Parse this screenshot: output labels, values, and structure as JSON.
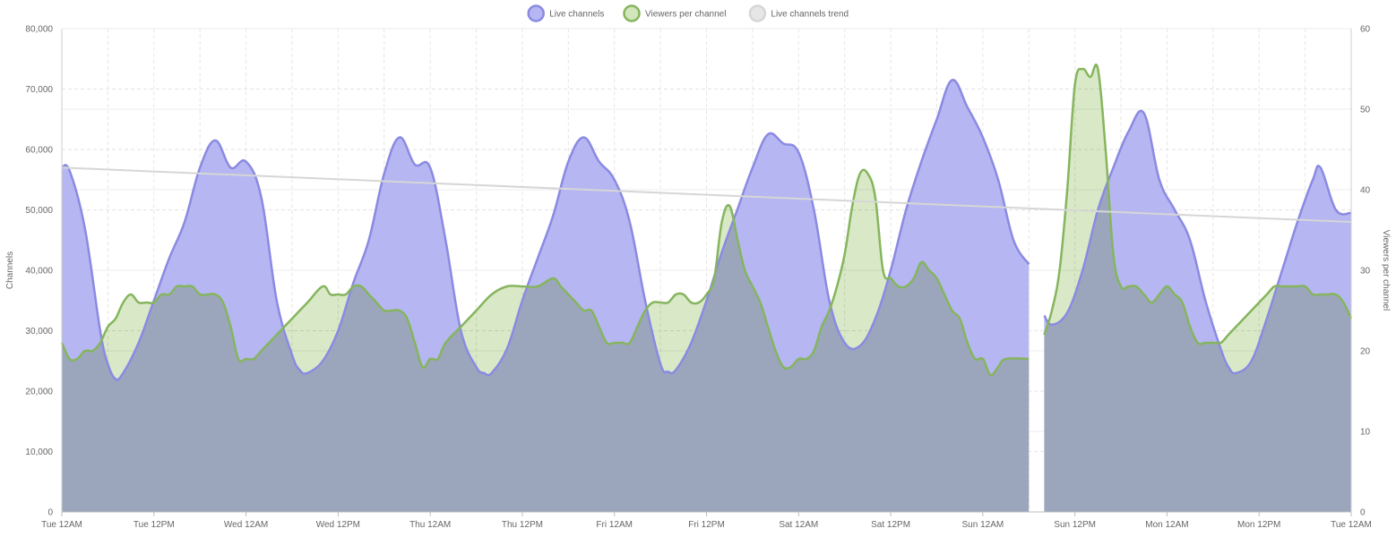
{
  "chart_data": {
    "type": "area",
    "legend": {
      "placement": "top-center",
      "items": [
        {
          "key": "live",
          "label": "Live channels",
          "fill": "#b6b6f2",
          "stroke": "#8a8ae2"
        },
        {
          "key": "vpc",
          "label": "Viewers per channel",
          "fill": "#d2e5bd",
          "stroke": "#85b55d"
        },
        {
          "key": "trend",
          "label": "Live channels trend",
          "fill": "#e6e6e6",
          "stroke": "#d6d6d6"
        }
      ]
    },
    "x_axis": {
      "range_hours": [
        0,
        168
      ],
      "tick_labels": [
        "Tue 12AM",
        "Tue 12PM",
        "Wed 12AM",
        "Wed 12PM",
        "Thu 12AM",
        "Thu 12PM",
        "Fri 12AM",
        "Fri 12PM",
        "Sat 12AM",
        "Sat 12PM",
        "Sun 12AM",
        "Sun 12PM",
        "Mon 12AM",
        "Mon 12PM",
        "Tue 12AM"
      ]
    },
    "y_left": {
      "title": "Channels",
      "range": [
        0,
        80000
      ],
      "tick_labels": [
        "0",
        "10,000",
        "20,000",
        "30,000",
        "40,000",
        "50,000",
        "60,000",
        "70,000",
        "80,000"
      ]
    },
    "y_right": {
      "title": "Viewers per channel",
      "range": [
        0,
        60
      ],
      "tick_labels": [
        "0",
        "10",
        "20",
        "30",
        "40",
        "50",
        "60"
      ]
    },
    "grid": true,
    "series": [
      {
        "key": "live",
        "name": "Live channels",
        "axis": "left",
        "points": [
          [
            0,
            57000
          ],
          [
            1,
            56500
          ],
          [
            3,
            47000
          ],
          [
            5,
            30000
          ],
          [
            6,
            24500
          ],
          [
            7,
            22000
          ],
          [
            8,
            23000
          ],
          [
            10,
            28000
          ],
          [
            12,
            35000
          ],
          [
            14,
            42000
          ],
          [
            16,
            48000
          ],
          [
            18,
            57000
          ],
          [
            20,
            61500
          ],
          [
            22,
            57000
          ],
          [
            24,
            58000
          ],
          [
            26,
            52000
          ],
          [
            28,
            35000
          ],
          [
            30,
            26000
          ],
          [
            31,
            23500
          ],
          [
            32,
            23000
          ],
          [
            34,
            25000
          ],
          [
            36,
            30000
          ],
          [
            38,
            38000
          ],
          [
            40,
            45000
          ],
          [
            42,
            56000
          ],
          [
            44,
            62000
          ],
          [
            46,
            57500
          ],
          [
            48,
            57000
          ],
          [
            50,
            45000
          ],
          [
            52,
            30000
          ],
          [
            54,
            24000
          ],
          [
            55,
            23000
          ],
          [
            56,
            23000
          ],
          [
            58,
            27000
          ],
          [
            60,
            35000
          ],
          [
            62,
            42000
          ],
          [
            64,
            49000
          ],
          [
            66,
            58000
          ],
          [
            68,
            62000
          ],
          [
            70,
            58000
          ],
          [
            72,
            55000
          ],
          [
            74,
            48000
          ],
          [
            76,
            35000
          ],
          [
            78,
            24500
          ],
          [
            79,
            23200
          ],
          [
            80,
            23500
          ],
          [
            82,
            28000
          ],
          [
            84,
            35000
          ],
          [
            86,
            43000
          ],
          [
            88,
            50000
          ],
          [
            90,
            57000
          ],
          [
            92,
            62500
          ],
          [
            94,
            61000
          ],
          [
            96,
            59500
          ],
          [
            98,
            50000
          ],
          [
            100,
            35000
          ],
          [
            102,
            28000
          ],
          [
            104,
            27500
          ],
          [
            106,
            32000
          ],
          [
            108,
            40000
          ],
          [
            110,
            50000
          ],
          [
            112,
            58000
          ],
          [
            114,
            65000
          ],
          [
            116,
            71500
          ],
          [
            118,
            67000
          ],
          [
            120,
            62000
          ],
          [
            122,
            55000
          ],
          [
            124,
            45000
          ],
          [
            126,
            41000
          ]
        ]
      },
      {
        "key": "live",
        "name": "Live channels",
        "axis": "left",
        "points": [
          [
            128,
            32500
          ],
          [
            129,
            31000
          ],
          [
            131,
            33000
          ],
          [
            133,
            40000
          ],
          [
            135,
            50000
          ],
          [
            137,
            57000
          ],
          [
            139,
            63000
          ],
          [
            141,
            66000
          ],
          [
            143,
            55000
          ],
          [
            145,
            50000
          ],
          [
            147,
            45000
          ],
          [
            149,
            35000
          ],
          [
            151,
            27000
          ],
          [
            152,
            24000
          ],
          [
            153,
            23000
          ],
          [
            155,
            25000
          ],
          [
            157,
            32000
          ],
          [
            159,
            40000
          ],
          [
            161,
            48000
          ],
          [
            163,
            55000
          ],
          [
            164,
            57000
          ],
          [
            166,
            50000
          ],
          [
            168,
            49500
          ]
        ]
      },
      {
        "key": "vpc",
        "name": "Viewers per channel",
        "axis": "right",
        "points": [
          [
            0,
            21
          ],
          [
            1,
            19
          ],
          [
            2,
            19
          ],
          [
            3,
            20
          ],
          [
            4,
            20
          ],
          [
            5,
            21
          ],
          [
            6,
            23
          ],
          [
            7,
            24
          ],
          [
            8,
            26
          ],
          [
            9,
            27
          ],
          [
            10,
            26
          ],
          [
            11,
            26
          ],
          [
            12,
            26
          ],
          [
            13,
            27
          ],
          [
            14,
            27
          ],
          [
            15,
            28
          ],
          [
            16,
            28
          ],
          [
            17,
            28
          ],
          [
            18,
            27
          ],
          [
            19,
            27
          ],
          [
            20,
            27
          ],
          [
            21,
            26
          ],
          [
            22,
            23
          ],
          [
            23,
            19
          ],
          [
            24,
            19
          ],
          [
            25,
            19
          ],
          [
            26,
            20
          ],
          [
            28,
            22
          ],
          [
            30,
            24
          ],
          [
            32,
            26
          ],
          [
            34,
            28
          ],
          [
            35,
            27
          ],
          [
            36,
            27
          ],
          [
            37,
            27
          ],
          [
            38,
            28
          ],
          [
            39,
            28
          ],
          [
            40,
            27
          ],
          [
            41,
            26
          ],
          [
            42,
            25
          ],
          [
            43,
            25
          ],
          [
            44,
            25
          ],
          [
            45,
            24
          ],
          [
            46,
            21
          ],
          [
            47,
            18
          ],
          [
            48,
            19
          ],
          [
            49,
            19
          ],
          [
            50,
            21
          ],
          [
            52,
            23
          ],
          [
            54,
            25
          ],
          [
            56,
            27
          ],
          [
            58,
            28
          ],
          [
            60,
            28
          ],
          [
            62,
            28
          ],
          [
            64,
            29
          ],
          [
            65,
            28
          ],
          [
            66,
            27
          ],
          [
            67,
            26
          ],
          [
            68,
            25
          ],
          [
            69,
            25
          ],
          [
            70,
            23
          ],
          [
            71,
            21
          ],
          [
            72,
            21
          ],
          [
            73,
            21
          ],
          [
            74,
            21
          ],
          [
            75,
            23
          ],
          [
            76,
            25
          ],
          [
            77,
            26
          ],
          [
            78,
            26
          ],
          [
            79,
            26
          ],
          [
            80,
            27
          ],
          [
            81,
            27
          ],
          [
            82,
            26
          ],
          [
            83,
            26
          ],
          [
            84,
            27
          ],
          [
            85,
            29
          ],
          [
            86,
            36
          ],
          [
            87,
            38
          ],
          [
            88,
            34
          ],
          [
            89,
            30
          ],
          [
            90,
            28
          ],
          [
            91,
            26
          ],
          [
            92,
            23
          ],
          [
            93,
            20
          ],
          [
            94,
            18
          ],
          [
            95,
            18
          ],
          [
            96,
            19
          ],
          [
            97,
            19
          ],
          [
            98,
            20
          ],
          [
            99,
            23
          ],
          [
            100,
            25
          ],
          [
            101,
            28
          ],
          [
            102,
            32
          ],
          [
            103,
            38
          ],
          [
            104,
            42
          ],
          [
            105,
            42
          ],
          [
            106,
            39
          ],
          [
            107,
            30
          ],
          [
            108,
            29
          ],
          [
            109,
            28
          ],
          [
            110,
            28
          ],
          [
            111,
            29
          ],
          [
            112,
            31
          ],
          [
            113,
            30
          ],
          [
            114,
            29
          ],
          [
            115,
            27
          ],
          [
            116,
            25
          ],
          [
            117,
            24
          ],
          [
            118,
            21
          ],
          [
            119,
            19
          ],
          [
            120,
            19
          ],
          [
            121,
            17
          ],
          [
            122,
            18
          ],
          [
            123,
            19
          ],
          [
            126,
            19
          ]
        ]
      },
      {
        "key": "vpc",
        "name": "Viewers per channel",
        "axis": "right",
        "points": [
          [
            128,
            22
          ],
          [
            129,
            25
          ],
          [
            130,
            30
          ],
          [
            131,
            40
          ],
          [
            132,
            53
          ],
          [
            133,
            55
          ],
          [
            134,
            54
          ],
          [
            135,
            55
          ],
          [
            136,
            45
          ],
          [
            137,
            32
          ],
          [
            138,
            28
          ],
          [
            139,
            28
          ],
          [
            140,
            28
          ],
          [
            141,
            27
          ],
          [
            142,
            26
          ],
          [
            143,
            27
          ],
          [
            144,
            28
          ],
          [
            145,
            27
          ],
          [
            146,
            26
          ],
          [
            147,
            23
          ],
          [
            148,
            21
          ],
          [
            149,
            21
          ],
          [
            150,
            21
          ],
          [
            151,
            21
          ],
          [
            152,
            22
          ],
          [
            153,
            23
          ],
          [
            154,
            24
          ],
          [
            155,
            25
          ],
          [
            156,
            26
          ],
          [
            157,
            27
          ],
          [
            158,
            28
          ],
          [
            159,
            28
          ],
          [
            160,
            28
          ],
          [
            161,
            28
          ],
          [
            162,
            28
          ],
          [
            163,
            27
          ],
          [
            164,
            27
          ],
          [
            165,
            27
          ],
          [
            166,
            27
          ],
          [
            167,
            26
          ],
          [
            168,
            24
          ]
        ]
      },
      {
        "key": "trend",
        "name": "Live channels trend",
        "axis": "left",
        "points": [
          [
            0,
            57000
          ],
          [
            168,
            48000
          ]
        ]
      }
    ]
  }
}
